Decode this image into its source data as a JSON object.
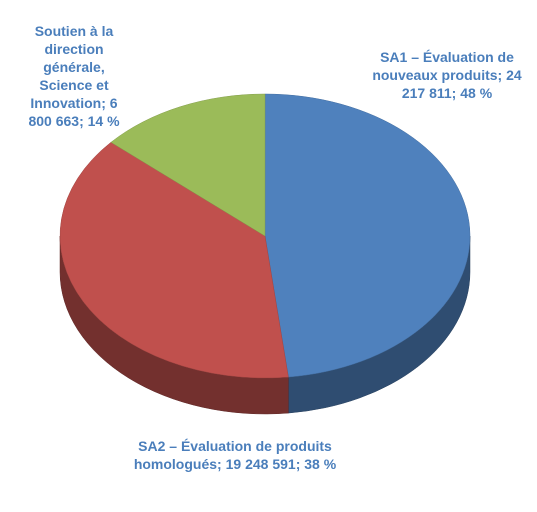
{
  "chart_data": {
    "type": "pie3d",
    "categories": [
      "SA1 – Évaluation de nouveaux produits",
      "SA2 – Évaluation de produits homologués",
      "Soutien à la direction générale, Science et Innovation"
    ],
    "values": [
      24217811,
      19248591,
      6800663
    ],
    "value_labels": [
      "24 217 811",
      "19 248 591",
      "6 800 663"
    ],
    "percents": [
      48,
      38,
      14
    ],
    "percent_labels": [
      "48 %",
      "38 %",
      "14 %"
    ],
    "separator": "; ",
    "colors": [
      "#4f81bd",
      "#c0504d",
      "#9bbb59"
    ],
    "label_color": "#4a7ebb"
  }
}
